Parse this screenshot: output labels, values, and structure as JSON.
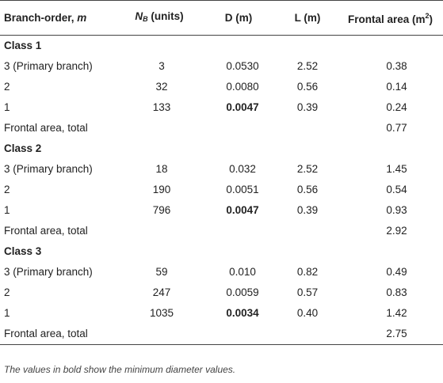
{
  "headers": {
    "branch_order_label": "Branch-order, ",
    "branch_order_var": "m",
    "nb_main": "N",
    "nb_sub": "B",
    "nb_unit": " (units)",
    "d": "D (m)",
    "l": "L (m)",
    "frontal_main": "Frontal area (m",
    "frontal_sup": "2",
    "frontal_close": ")"
  },
  "classes": [
    {
      "title": "Class 1",
      "rows": [
        {
          "order": "3 (Primary branch)",
          "nb": "3",
          "d": "0.0530",
          "d_bold": false,
          "l": "2.52",
          "area": "0.38"
        },
        {
          "order": "2",
          "nb": "32",
          "d": "0.0080",
          "d_bold": false,
          "l": "0.56",
          "area": "0.14"
        },
        {
          "order": "1",
          "nb": "133",
          "d": "0.0047",
          "d_bold": true,
          "l": "0.39",
          "area": "0.24"
        }
      ],
      "total_label": "Frontal area, total",
      "total": "0.77"
    },
    {
      "title": "Class 2",
      "rows": [
        {
          "order": "3 (Primary branch)",
          "nb": "18",
          "d": "0.032",
          "d_bold": false,
          "l": "2.52",
          "area": "1.45"
        },
        {
          "order": "2",
          "nb": "190",
          "d": "0.0051",
          "d_bold": false,
          "l": "0.56",
          "area": "0.54"
        },
        {
          "order": "1",
          "nb": "796",
          "d": "0.0047",
          "d_bold": true,
          "l": "0.39",
          "area": "0.93"
        }
      ],
      "total_label": "Frontal area, total",
      "total": "2.92"
    },
    {
      "title": "Class 3",
      "rows": [
        {
          "order": "3 (Primary branch)",
          "nb": "59",
          "d": "0.010",
          "d_bold": false,
          "l": "0.82",
          "area": "0.49"
        },
        {
          "order": "2",
          "nb": "247",
          "d": "0.0059",
          "d_bold": false,
          "l": "0.57",
          "area": "0.83"
        },
        {
          "order": "1",
          "nb": "1035",
          "d": "0.0034",
          "d_bold": true,
          "l": "0.40",
          "area": "1.42"
        }
      ],
      "total_label": "Frontal area, total",
      "total": "2.75"
    }
  ],
  "footnote": "The values in bold show the minimum diameter values."
}
